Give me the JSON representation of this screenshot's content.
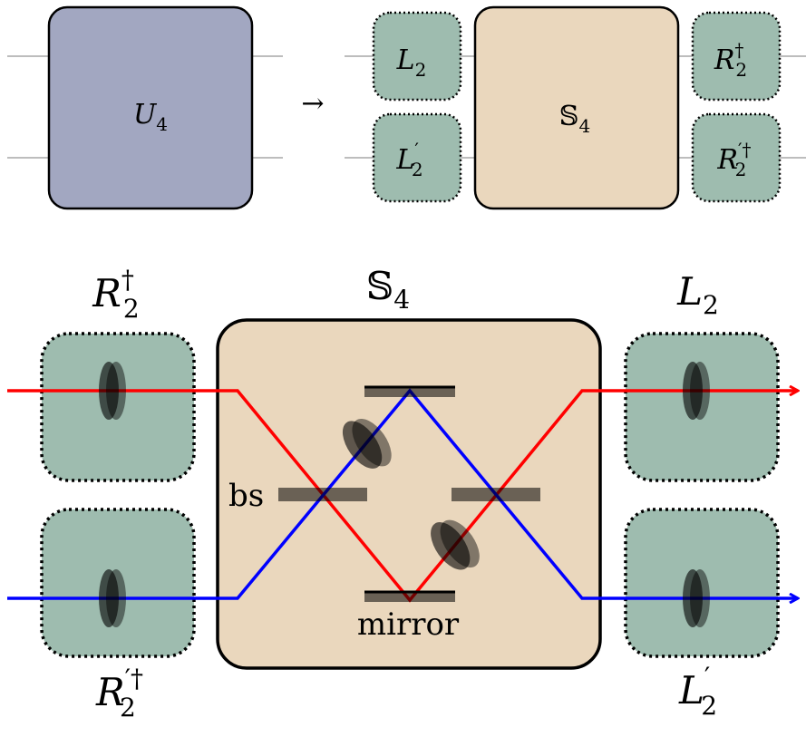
{
  "colors": {
    "unitary_fill": "#a2a7c1",
    "local_fill": "#9ebcaf",
    "s_fill": "#ead7bd",
    "wire": "#bdbdbd",
    "red_beam": "#ff0000",
    "blue_beam": "#0000ff",
    "element": "#555555"
  },
  "top": {
    "U_label": "U",
    "U_sub": "4",
    "arrow": "→",
    "L2": {
      "base": "L",
      "sub": "2",
      "sup": ""
    },
    "L2p": {
      "base": "L",
      "sub": "2",
      "sup": "′"
    },
    "S4": {
      "base": "𝕊",
      "sub": "4"
    },
    "R2d": {
      "base": "R",
      "sub": "2",
      "sup": "†"
    },
    "R2pd": {
      "base": "R",
      "sub": "2",
      "sup": "′†"
    }
  },
  "bottom": {
    "R2d": {
      "base": "R",
      "sub": "2",
      "sup": "†"
    },
    "S4": {
      "base": "𝕊",
      "sub": "4"
    },
    "L2": {
      "base": "L",
      "sub": "2",
      "sup": ""
    },
    "R2pd": {
      "base": "R",
      "sub": "2",
      "sup": "′†"
    },
    "L2p": {
      "base": "L",
      "sub": "2",
      "sup": "′"
    },
    "bs_label": "bs",
    "mirror_label": "mirror"
  }
}
